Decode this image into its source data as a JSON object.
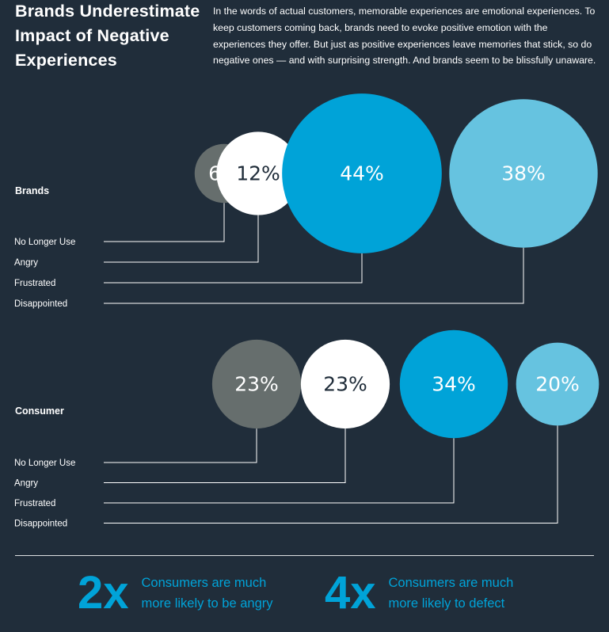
{
  "title": "Brands Underestimate\nImpact of Negative\nExperiences",
  "intro": "In the words of actual customers, memorable experiences are emotional experiences. To keep customers coming back, brands need to evoke positive emotion with the experiences they offer. But just as positive experiences leave memories that stick, so do negative ones — and with surprising strength. And brands seem to be blissfully unaware.",
  "colors": {
    "background": "#202d3a",
    "no_longer_use": "#666e6d",
    "angry": "#ffffff",
    "frustrated": "#00a3d8",
    "disappointed": "#66c3e0",
    "accent": "#00a3d8"
  },
  "chart_data": [
    {
      "type": "bubble",
      "group": "Brands",
      "categories": [
        "No Longer Use",
        "Angry",
        "Frustrated",
        "Disappointed"
      ],
      "values": [
        6,
        12,
        44,
        38
      ],
      "labels": [
        "6%",
        "12%",
        "44%",
        "38%"
      ]
    },
    {
      "type": "bubble",
      "group": "Consumer",
      "categories": [
        "No Longer Use",
        "Angry",
        "Frustrated",
        "Disappointed"
      ],
      "values": [
        23,
        23,
        34,
        20
      ],
      "labels": [
        "23%",
        "23%",
        "34%",
        "20%"
      ]
    }
  ],
  "stats": [
    {
      "number": "2x",
      "text": "Consumers are much\nmore likely to be angry"
    },
    {
      "number": "4x",
      "text": "Consumers are much\nmore likely to defect"
    }
  ]
}
